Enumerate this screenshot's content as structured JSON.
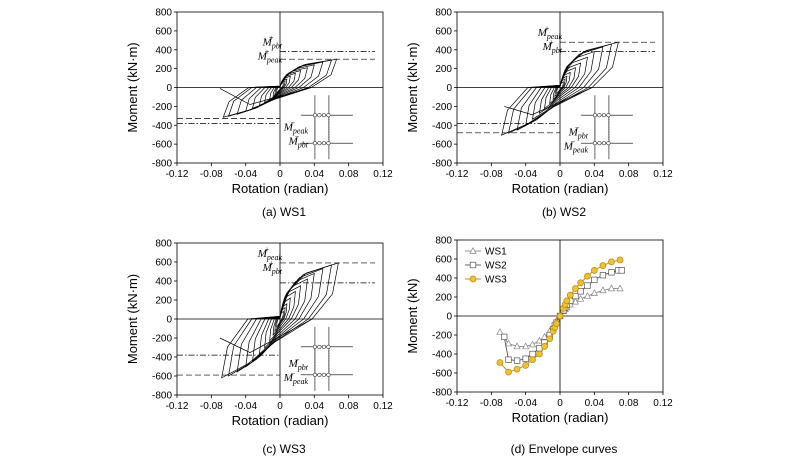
{
  "chart_data": [
    {
      "type": "line",
      "panel": "hysteresis",
      "caption": "(a) WS1",
      "xlabel": "Rotation (radian)",
      "ylabel": "Moment (kN·m)",
      "xlim": [
        -0.12,
        0.12
      ],
      "ylim": [
        -800,
        800
      ],
      "xticks": [
        "-0.12",
        "-0.08",
        "-0.04",
        "0",
        "0.04",
        "0.08",
        "0.12"
      ],
      "yticks": [
        "800",
        "600",
        "400",
        "200",
        "0",
        "-200",
        "-400",
        "-600",
        "-800"
      ],
      "m_peak_pos": 300,
      "m_pbt_pos": 380,
      "m_peak_neg": -330,
      "m_pbt_neg": -380,
      "pos_label_order": [
        "pbt",
        "peak"
      ],
      "neg_label_order": [
        "peak",
        "pbt"
      ],
      "cycles": [
        [
          0.004,
          50
        ],
        [
          0.006,
          70
        ],
        [
          0.008,
          90
        ],
        [
          0.012,
          120
        ],
        [
          0.018,
          150
        ],
        [
          0.024,
          180
        ],
        [
          0.032,
          210
        ],
        [
          0.04,
          240
        ],
        [
          0.05,
          270
        ],
        [
          0.06,
          290
        ],
        [
          0.066,
          300
        ]
      ],
      "final_neg": [
        -0.07,
        -10
      ],
      "annotations": [
        "M+pbt",
        "M+peak",
        "M−peak",
        "M−pbt"
      ]
    },
    {
      "type": "line",
      "panel": "hysteresis",
      "caption": "(b) WS2",
      "xlabel": "Rotation (radian)",
      "ylabel": "Moment (kN·m)",
      "xlim": [
        -0.12,
        0.12
      ],
      "ylim": [
        -800,
        800
      ],
      "xticks": [
        "-0.12",
        "-0.08",
        "-0.04",
        "0",
        "0.04",
        "0.08",
        "0.12"
      ],
      "yticks": [
        "800",
        "600",
        "400",
        "200",
        "0",
        "-200",
        "-400",
        "-600",
        "-800"
      ],
      "m_peak_pos": 480,
      "m_pbt_pos": 380,
      "m_peak_neg": -480,
      "m_pbt_neg": -380,
      "pos_label_order": [
        "peak",
        "pbt"
      ],
      "neg_label_order": [
        "pbt",
        "peak"
      ],
      "cycles": [
        [
          0.004,
          60
        ],
        [
          0.006,
          90
        ],
        [
          0.008,
          120
        ],
        [
          0.012,
          160
        ],
        [
          0.018,
          210
        ],
        [
          0.024,
          260
        ],
        [
          0.032,
          320
        ],
        [
          0.04,
          380
        ],
        [
          0.05,
          430
        ],
        [
          0.06,
          460
        ],
        [
          0.068,
          480
        ]
      ],
      "final_neg": [
        -0.065,
        -200
      ],
      "annotations": [
        "M+peak",
        "M+pbt",
        "M−pbt",
        "M−peak"
      ]
    },
    {
      "type": "line",
      "panel": "hysteresis",
      "caption": "(c) WS3",
      "xlabel": "Rotation (radian)",
      "ylabel": "Moment (kN·m)",
      "xlim": [
        -0.12,
        0.12
      ],
      "ylim": [
        -800,
        800
      ],
      "xticks": [
        "-0.12",
        "-0.08",
        "-0.04",
        "0",
        "0.04",
        "0.08",
        "0.12"
      ],
      "yticks": [
        "800",
        "600",
        "400",
        "200",
        "0",
        "-200",
        "-400",
        "-600",
        "-800"
      ],
      "m_peak_pos": 590,
      "m_pbt_pos": 380,
      "m_peak_neg": -590,
      "m_pbt_neg": -380,
      "pos_label_order": [
        "peak",
        "pbt"
      ],
      "neg_label_order": [
        "pbt",
        "peak"
      ],
      "cycles": [
        [
          0.004,
          80
        ],
        [
          0.006,
          120
        ],
        [
          0.008,
          160
        ],
        [
          0.012,
          220
        ],
        [
          0.018,
          290
        ],
        [
          0.024,
          350
        ],
        [
          0.032,
          420
        ],
        [
          0.04,
          480
        ],
        [
          0.05,
          530
        ],
        [
          0.06,
          570
        ],
        [
          0.068,
          590
        ]
      ],
      "final_neg": [
        -0.07,
        -200
      ],
      "annotations": [
        "M+peak",
        "M+pbt",
        "M−pbt",
        "M−peak"
      ]
    },
    {
      "type": "line",
      "panel": "envelope",
      "caption": "(d) Envelope curves",
      "xlabel": "Rotation (radian)",
      "ylabel": "Moment (kN)",
      "xlim": [
        -0.12,
        0.12
      ],
      "ylim": [
        -800,
        800
      ],
      "xticks": [
        "-0.12",
        "-0.08",
        "-0.04",
        "0",
        "0.04",
        "0.08",
        "0.12"
      ],
      "yticks": [
        "800",
        "600",
        "400",
        "200",
        "0",
        "-200",
        "-400",
        "-600",
        "-800"
      ],
      "legend_position": "top-left",
      "series": [
        {
          "name": "WS1",
          "marker": "triangle",
          "color": "#888888",
          "fill": "#ffffff",
          "x": [
            -0.07,
            -0.06,
            -0.05,
            -0.04,
            -0.032,
            -0.024,
            -0.018,
            -0.012,
            -0.008,
            -0.006,
            -0.004,
            0,
            0.004,
            0.006,
            0.008,
            0.012,
            0.018,
            0.024,
            0.032,
            0.04,
            0.05,
            0.06,
            0.07
          ],
          "y": [
            -170,
            -290,
            -320,
            -320,
            -300,
            -260,
            -220,
            -160,
            -110,
            -80,
            -50,
            0,
            50,
            70,
            90,
            120,
            150,
            180,
            210,
            240,
            270,
            290,
            290
          ]
        },
        {
          "name": "WS2",
          "marker": "square",
          "color": "#555555",
          "fill": "#ffffff",
          "x": [
            -0.065,
            -0.06,
            -0.05,
            -0.04,
            -0.032,
            -0.024,
            -0.018,
            -0.012,
            -0.008,
            -0.006,
            -0.004,
            0,
            0.004,
            0.006,
            0.008,
            0.012,
            0.018,
            0.024,
            0.032,
            0.04,
            0.05,
            0.06,
            0.068,
            0.072
          ],
          "y": [
            -220,
            -460,
            -470,
            -450,
            -400,
            -340,
            -280,
            -200,
            -140,
            -100,
            -70,
            0,
            60,
            90,
            120,
            160,
            210,
            260,
            320,
            380,
            430,
            460,
            480,
            480
          ]
        },
        {
          "name": "WS3",
          "marker": "circle",
          "color": "#b8860b",
          "fill": "#f2c12e",
          "x": [
            -0.07,
            -0.06,
            -0.05,
            -0.04,
            -0.032,
            -0.024,
            -0.018,
            -0.012,
            -0.008,
            -0.006,
            -0.004,
            0,
            0.004,
            0.006,
            0.008,
            0.012,
            0.018,
            0.024,
            0.032,
            0.04,
            0.05,
            0.06,
            0.07
          ],
          "y": [
            -490,
            -590,
            -560,
            -520,
            -460,
            -400,
            -320,
            -240,
            -160,
            -120,
            -80,
            0,
            80,
            120,
            160,
            220,
            290,
            350,
            420,
            480,
            530,
            570,
            590
          ]
        }
      ]
    }
  ]
}
